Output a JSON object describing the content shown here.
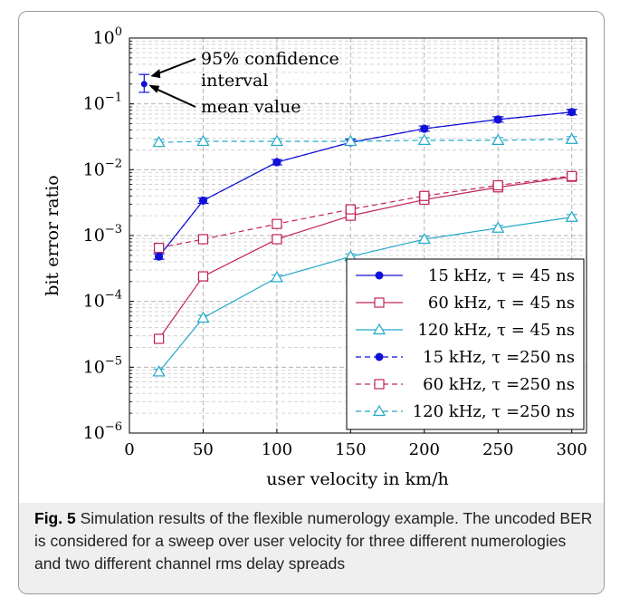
{
  "chart_data": {
    "type": "line",
    "xlabel": "user velocity in km/h",
    "ylabel": "bit error ratio",
    "yscale": "log",
    "xlim": [
      0,
      310
    ],
    "ylim": [
      1e-06,
      1
    ],
    "x_ticks": [
      "0",
      "50",
      "100",
      "150",
      "200",
      "250",
      "300"
    ],
    "y_ticks": [
      {
        "base": "10",
        "exp": "0"
      },
      {
        "base": "10",
        "exp": "−1"
      },
      {
        "base": "10",
        "exp": "−2"
      },
      {
        "base": "10",
        "exp": "−3"
      },
      {
        "base": "10",
        "exp": "−4"
      },
      {
        "base": "10",
        "exp": "−5"
      },
      {
        "base": "10",
        "exp": "−6"
      }
    ],
    "x": [
      20,
      50,
      100,
      150,
      200,
      250,
      300
    ],
    "series": [
      {
        "name": "15 kHz, τ = 45 ns",
        "color": "#1010d8",
        "marker": "circle",
        "dash": false,
        "values": [
          0.00048,
          0.0034,
          0.013,
          0.026,
          0.042,
          0.058,
          0.075
        ]
      },
      {
        "name": "60 kHz, τ = 45 ns",
        "color": "#c0245c",
        "marker": "square",
        "dash": false,
        "values": [
          2.7e-05,
          0.00024,
          0.00088,
          0.002,
          0.0035,
          0.0054,
          0.0078
        ]
      },
      {
        "name": "120 kHz, τ = 45 ns",
        "color": "#22a8c8",
        "marker": "triangle",
        "dash": false,
        "values": [
          8.5e-06,
          5.6e-05,
          0.00023,
          0.00048,
          0.00088,
          0.0013,
          0.0019
        ]
      },
      {
        "name": "15 kHz, τ =250 ns",
        "color": "#1010d8",
        "marker": "circle",
        "dash": true,
        "values": [
          0.00048,
          0.0034,
          0.013,
          0.026,
          0.042,
          0.058,
          0.075
        ]
      },
      {
        "name": "60 kHz, τ =250 ns",
        "color": "#c0245c",
        "marker": "square",
        "dash": true,
        "values": [
          0.00065,
          0.00088,
          0.0015,
          0.0025,
          0.004,
          0.0058,
          0.008
        ]
      },
      {
        "name": "120 kHz, τ =250 ns",
        "color": "#22a8c8",
        "marker": "triangle",
        "dash": true,
        "values": [
          0.026,
          0.027,
          0.027,
          0.027,
          0.028,
          0.028,
          0.029
        ]
      }
    ],
    "annotations": {
      "confidence_line1": "95% confidence",
      "confidence_line2": "interval",
      "mean_value": "mean value",
      "example_x": 10,
      "example_mean": 0.2,
      "example_ci": [
        0.15,
        0.28
      ]
    },
    "legend_position": "bottom-right"
  },
  "caption": {
    "label": "Fig. 5",
    "text": " Simulation results of the flexible numerology example. The uncoded BER is considered for a sweep over user velocity for three different numerologies and two different channel rms delay spreads"
  }
}
